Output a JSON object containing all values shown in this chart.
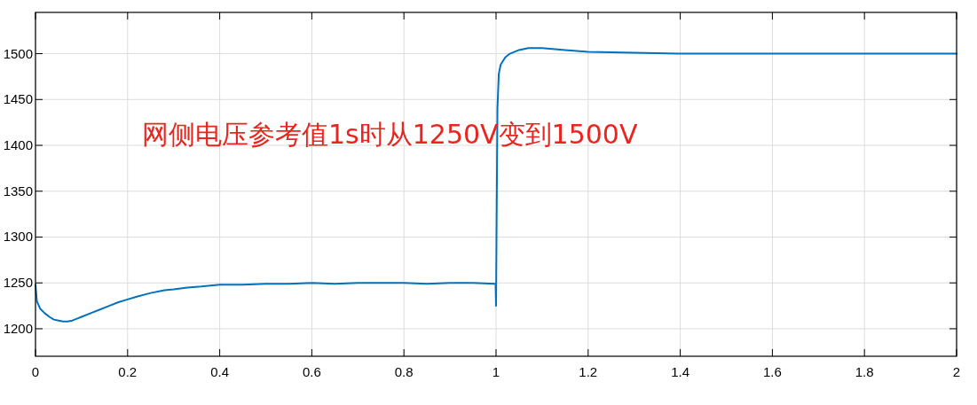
{
  "chart_data": {
    "type": "line",
    "annotations": [
      "网侧电压参考值1s时从1250V变到1500V"
    ],
    "xlim": [
      0,
      2
    ],
    "xticks": [
      0,
      0.2,
      0.4,
      0.6,
      0.8,
      1,
      1.2,
      1.4,
      1.6,
      1.8,
      2
    ],
    "ylim": [
      1170,
      1545
    ],
    "yticks": [
      1200,
      1250,
      1300,
      1350,
      1400,
      1450,
      1500
    ],
    "grid": true,
    "marker": "none",
    "line_style": "solid",
    "series": [
      {
        "color": "#0072bd",
        "x": [
          0,
          0.003,
          0.01,
          0.02,
          0.03,
          0.04,
          0.05,
          0.06,
          0.07,
          0.08,
          0.09,
          0.1,
          0.12,
          0.14,
          0.16,
          0.18,
          0.2,
          0.22,
          0.25,
          0.28,
          0.3,
          0.33,
          0.36,
          0.4,
          0.45,
          0.5,
          0.55,
          0.6,
          0.65,
          0.7,
          0.75,
          0.8,
          0.85,
          0.9,
          0.95,
          0.999,
          1.0,
          1.001,
          1.003,
          1.006,
          1.01,
          1.02,
          1.03,
          1.05,
          1.07,
          1.1,
          1.15,
          1.2,
          1.3,
          1.4,
          1.5,
          1.6,
          1.7,
          1.8,
          1.9,
          2
        ],
        "values": [
          1248,
          1230,
          1222,
          1217,
          1213,
          1210,
          1209,
          1208,
          1208,
          1209,
          1211,
          1213,
          1217,
          1221,
          1225,
          1229,
          1232,
          1235,
          1239,
          1242,
          1243,
          1245,
          1246,
          1248,
          1248,
          1249,
          1249,
          1250,
          1249,
          1250,
          1250,
          1250,
          1249,
          1250,
          1250,
          1249,
          1225,
          1300,
          1440,
          1478,
          1488,
          1496,
          1500,
          1504,
          1506,
          1506,
          1504,
          1502,
          1501,
          1500,
          1500,
          1500,
          1500,
          1500,
          1500,
          1500
        ]
      }
    ]
  }
}
